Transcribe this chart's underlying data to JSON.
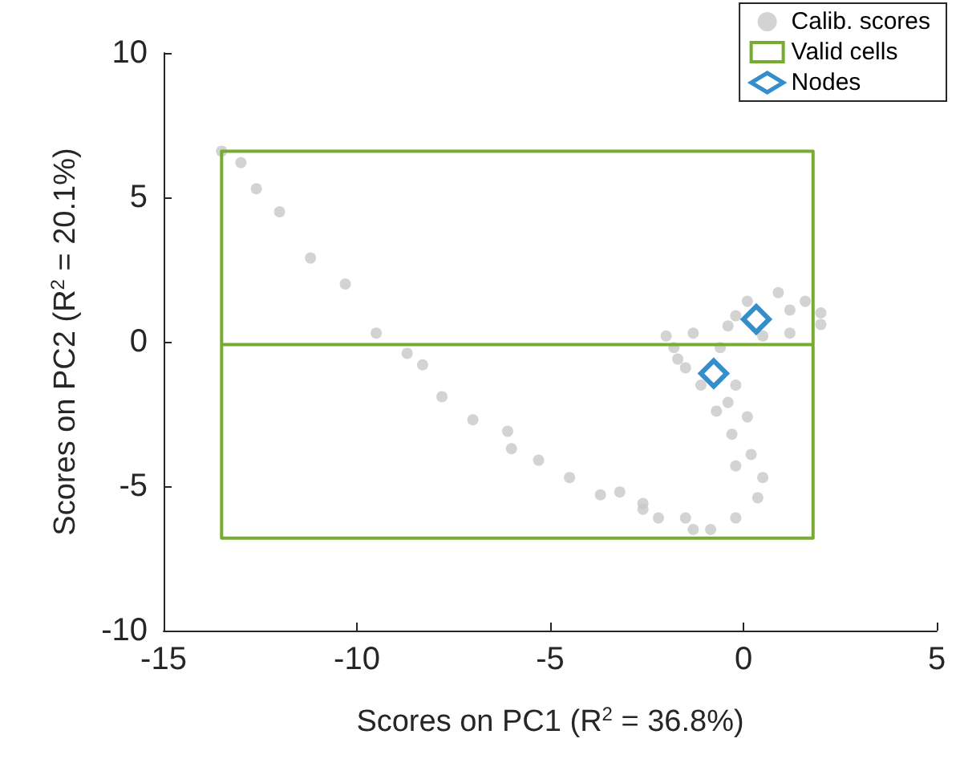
{
  "chart_data": {
    "type": "scatter",
    "xlabel": "Scores on PC1 (R$^{2}$ = 36.8%)",
    "ylabel": "Scores on PC2 (R$^{2}$ = 20.1%)",
    "xlim": [
      -15,
      5
    ],
    "ylim": [
      -10,
      10
    ],
    "xticks": [
      -15,
      -10,
      -5,
      0,
      5
    ],
    "yticks": [
      -10,
      -5,
      0,
      5,
      10
    ],
    "grid": false,
    "legend": "top right",
    "series": [
      {
        "name": "Calib. scores",
        "type": "scatter",
        "marker": "circle",
        "color": "#c8c8c8",
        "x": [
          -13.5,
          -13.0,
          -12.6,
          -12.0,
          -11.2,
          -10.3,
          -9.5,
          -8.7,
          -8.3,
          -7.8,
          -7.0,
          -6.1,
          -6.0,
          -5.3,
          -4.5,
          -3.7,
          -3.2,
          -2.6,
          -2.2,
          -1.3,
          -0.85,
          -1.5,
          -2.6,
          -0.2,
          0.37,
          0.5,
          0.2,
          -0.2,
          -0.3,
          0.1,
          -0.4,
          -0.2,
          -0.7,
          -1.8,
          -2.0,
          -1.5,
          -1.1,
          -0.6,
          -1.3,
          -0.4,
          0.1,
          0.9,
          1.6,
          1.2,
          0.5,
          1.2,
          -0.2,
          -1.7,
          2.0,
          2.0
        ],
        "values": [
          6.6,
          6.2,
          5.3,
          4.5,
          2.9,
          2.0,
          0.3,
          -0.4,
          -0.8,
          -1.9,
          -2.7,
          -3.1,
          -3.7,
          -4.1,
          -4.7,
          -5.3,
          -5.2,
          -5.8,
          -6.1,
          -6.5,
          -6.5,
          -6.1,
          -5.6,
          -6.1,
          -5.4,
          -4.7,
          -3.9,
          -4.3,
          -3.2,
          -2.6,
          -2.1,
          -1.5,
          -2.4,
          -0.2,
          0.2,
          -0.9,
          -1.5,
          -0.2,
          0.3,
          0.55,
          1.4,
          1.7,
          1.4,
          0.3,
          0.2,
          1.1,
          0.9,
          -0.6,
          1.0,
          0.6
        ]
      },
      {
        "name": "Valid cells",
        "type": "line",
        "marker": "none",
        "line_style": "solid",
        "color": "#77ac30",
        "x": [
          -13.5,
          -13.5,
          1.8,
          1.8,
          -13.5,
          -13.5,
          1.8
        ],
        "values": [
          -0.1,
          6.6,
          6.6,
          -6.8,
          -6.8,
          -0.1,
          -0.1
        ]
      },
      {
        "name": "Nodes",
        "type": "scatter",
        "marker": "diamond",
        "color": "#0072bd",
        "x": [
          0.33,
          -0.77
        ],
        "values": [
          0.78,
          -1.1
        ]
      }
    ]
  }
}
